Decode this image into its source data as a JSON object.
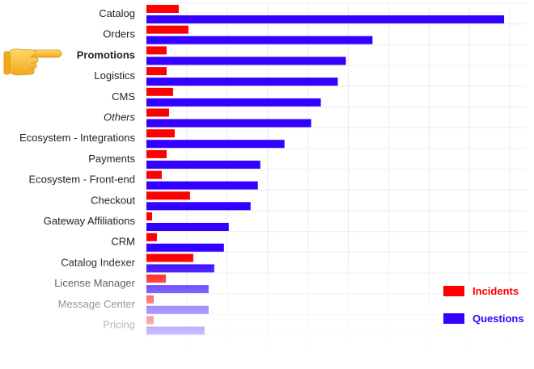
{
  "chart_data": {
    "type": "bar",
    "orientation": "horizontal",
    "categories": [
      "Catalog",
      "Orders",
      "Promotions",
      "Logistics",
      "CMS",
      "Others",
      "Ecosystem - Integrations",
      "Payments",
      "Ecosystem - Front-end",
      "Checkout",
      "Gateway Affiliations",
      "CRM",
      "Catalog Indexer",
      "License Manager",
      "Message Center",
      "Pricing"
    ],
    "highlighted_category": "Promotions",
    "italic_category": "Others",
    "series": [
      {
        "name": "Incidents",
        "color": "#ff0000",
        "values": [
          40,
          52,
          25,
          25,
          33,
          28,
          35,
          25,
          19,
          54,
          7,
          13,
          58,
          24,
          9,
          9
        ]
      },
      {
        "name": "Questions",
        "color": "#3300ff",
        "values": [
          443,
          280,
          247,
          237,
          216,
          204,
          171,
          141,
          138,
          129,
          102,
          96,
          84,
          77,
          77,
          72
        ]
      }
    ],
    "xlim": [
      0,
      470
    ],
    "grid": true,
    "legend_position": "bottom-right",
    "fade_bottom": true
  },
  "legend": {
    "incidents_label": "Incidents",
    "questions_label": "Questions",
    "incidents_color": "#ff0000",
    "questions_color": "#3300ff"
  },
  "pointer": {
    "icon": "pointing-hand-icon",
    "color": "#f7b731"
  }
}
